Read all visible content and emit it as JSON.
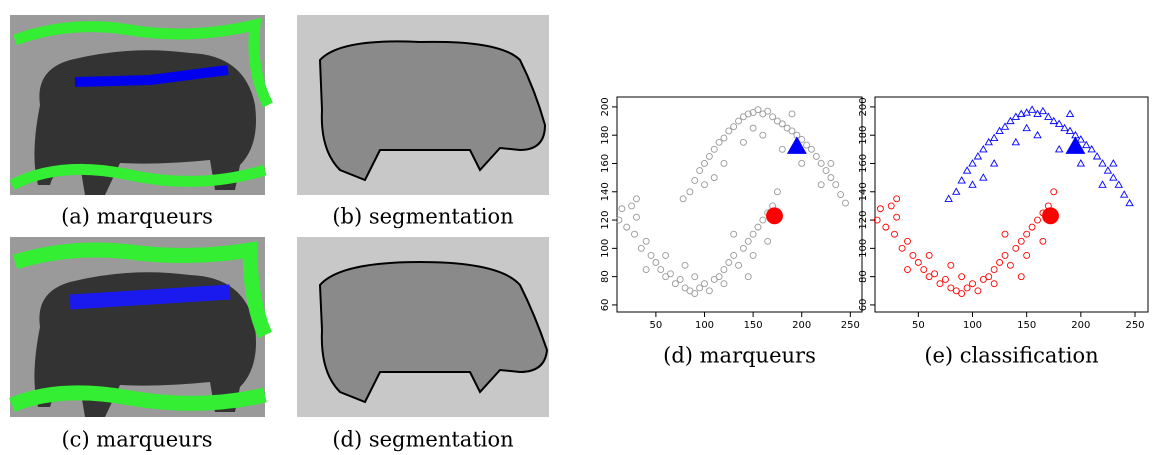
{
  "figures": [
    {
      "caption": "(a) marqueurs"
    },
    {
      "caption": "(b) segmentation"
    },
    {
      "caption": "(c) marqueurs"
    },
    {
      "caption": "(d) segmentation"
    }
  ],
  "chart_data": [
    {
      "type": "scatter",
      "caption": "(d) marqueurs",
      "xlim": [
        10,
        262
      ],
      "ylim": [
        55,
        207
      ],
      "xticks": [
        50,
        100,
        150,
        200,
        250
      ],
      "yticks": [
        60,
        80,
        100,
        120,
        140,
        160,
        180,
        200
      ],
      "series": [
        {
          "color": "#999999",
          "marker": "circle",
          "x": [
            78,
            85,
            90,
            95,
            100,
            105,
            110,
            115,
            120,
            125,
            130,
            135,
            140,
            145,
            150,
            155,
            160,
            165,
            170,
            175,
            180,
            185,
            190,
            195,
            200,
            205,
            210,
            215,
            220,
            225,
            230,
            235,
            240,
            245,
            120,
            140,
            160,
            180,
            200,
            220,
            110,
            150,
            190,
            230,
            100
          ],
          "values": [
            135,
            140,
            148,
            155,
            160,
            165,
            170,
            175,
            178,
            183,
            186,
            190,
            193,
            195,
            196,
            198,
            195,
            197,
            193,
            190,
            188,
            185,
            183,
            180,
            177,
            173,
            170,
            165,
            160,
            155,
            150,
            145,
            138,
            132,
            160,
            175,
            180,
            170,
            160,
            145,
            150,
            185,
            195,
            160,
            145
          ]
        },
        {
          "color": "#999999",
          "marker": "circle",
          "x": [
            12,
            15,
            20,
            25,
            28,
            30,
            35,
            40,
            45,
            50,
            55,
            60,
            65,
            70,
            75,
            80,
            85,
            90,
            95,
            100,
            105,
            110,
            115,
            120,
            125,
            130,
            135,
            140,
            145,
            150,
            155,
            160,
            165,
            170,
            175,
            40,
            60,
            90,
            120,
            150,
            165,
            30,
            130,
            145,
            80
          ],
          "values": [
            120,
            128,
            115,
            130,
            110,
            122,
            100,
            105,
            95,
            90,
            85,
            80,
            82,
            75,
            78,
            72,
            70,
            68,
            72,
            75,
            70,
            78,
            80,
            85,
            90,
            95,
            88,
            100,
            105,
            110,
            115,
            120,
            125,
            130,
            140,
            85,
            95,
            80,
            75,
            95,
            105,
            135,
            110,
            80,
            88
          ]
        },
        {
          "color": "#ff0000",
          "marker": "filled-circle",
          "x": [
            172
          ],
          "values": [
            123
          ]
        },
        {
          "color": "#0000ff",
          "marker": "filled-triangle",
          "x": [
            195
          ],
          "values": [
            172
          ]
        }
      ]
    },
    {
      "type": "scatter",
      "caption": "(e) classification",
      "xlim": [
        10,
        262
      ],
      "ylim": [
        55,
        207
      ],
      "xticks": [
        50,
        100,
        150,
        200,
        250
      ],
      "yticks": [
        60,
        80,
        100,
        120,
        140,
        160,
        180,
        200
      ],
      "series": [
        {
          "color": "#0000ff",
          "marker": "triangle",
          "x": [
            78,
            85,
            90,
            95,
            100,
            105,
            110,
            115,
            120,
            125,
            130,
            135,
            140,
            145,
            150,
            155,
            160,
            165,
            170,
            175,
            180,
            185,
            190,
            195,
            200,
            205,
            210,
            215,
            220,
            225,
            230,
            235,
            240,
            245,
            120,
            140,
            160,
            180,
            200,
            220,
            110,
            150,
            190,
            230,
            100
          ],
          "values": [
            135,
            140,
            148,
            155,
            160,
            165,
            170,
            175,
            178,
            183,
            186,
            190,
            193,
            195,
            196,
            198,
            195,
            197,
            193,
            190,
            188,
            185,
            183,
            180,
            177,
            173,
            170,
            165,
            160,
            155,
            150,
            145,
            138,
            132,
            160,
            175,
            180,
            170,
            160,
            145,
            150,
            185,
            195,
            160,
            145
          ]
        },
        {
          "color": "#ff0000",
          "marker": "circle",
          "x": [
            12,
            15,
            20,
            25,
            28,
            30,
            35,
            40,
            45,
            50,
            55,
            60,
            65,
            70,
            75,
            80,
            85,
            90,
            95,
            100,
            105,
            110,
            115,
            120,
            125,
            130,
            135,
            140,
            145,
            150,
            155,
            160,
            165,
            170,
            175,
            40,
            60,
            90,
            120,
            150,
            165,
            30,
            130,
            145,
            80
          ],
          "values": [
            120,
            128,
            115,
            130,
            110,
            122,
            100,
            105,
            95,
            90,
            85,
            80,
            82,
            75,
            78,
            72,
            70,
            68,
            72,
            75,
            70,
            78,
            80,
            85,
            90,
            95,
            88,
            100,
            105,
            110,
            115,
            120,
            125,
            130,
            140,
            85,
            95,
            80,
            75,
            95,
            105,
            135,
            110,
            80,
            88
          ]
        },
        {
          "color": "#ff0000",
          "marker": "filled-circle",
          "x": [
            172
          ],
          "values": [
            123
          ]
        },
        {
          "color": "#0000ff",
          "marker": "filled-triangle",
          "x": [
            195
          ],
          "values": [
            172
          ]
        }
      ]
    }
  ]
}
